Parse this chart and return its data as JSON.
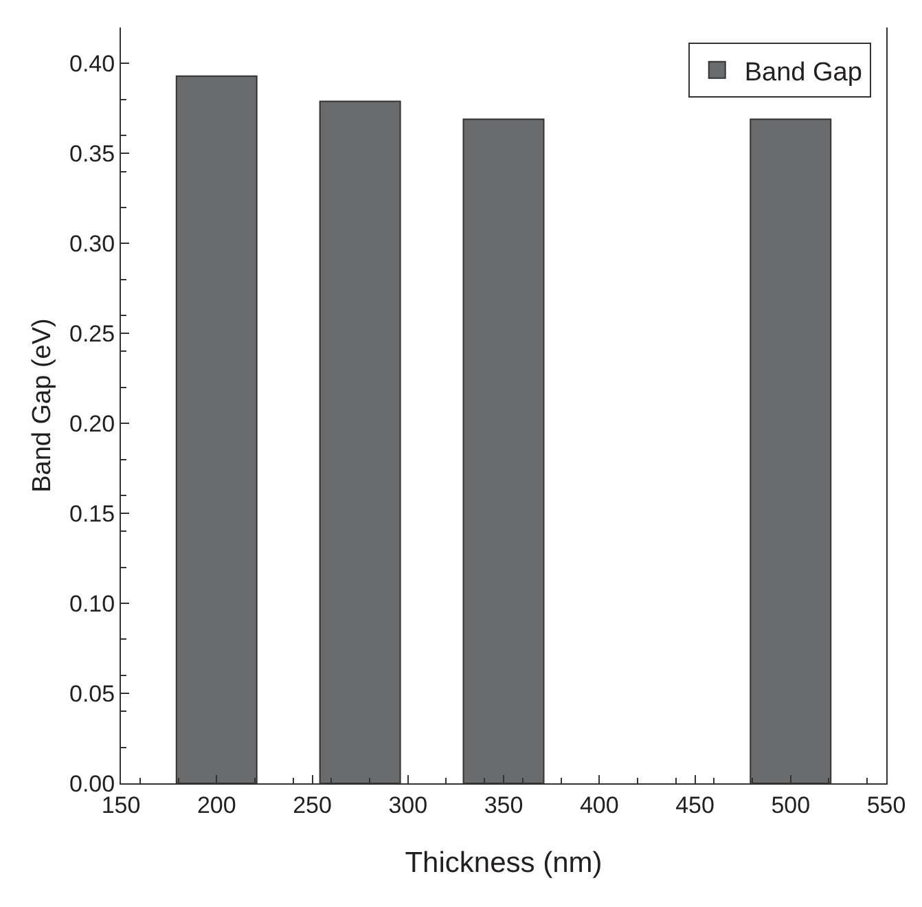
{
  "chart_data": {
    "type": "bar",
    "xlabel": "Thickness (nm)",
    "ylabel": "Band Gap (eV)",
    "x": [
      200,
      275,
      350,
      500
    ],
    "series": [
      {
        "name": "Band Gap",
        "color": "#6a6b6d",
        "values": [
          0.393,
          0.379,
          0.369,
          0.369
        ]
      }
    ],
    "xlim": [
      150,
      550
    ],
    "xticks": [
      150,
      200,
      250,
      300,
      350,
      400,
      450,
      500,
      550
    ],
    "ylim": [
      0,
      0.42
    ],
    "yticks": [
      {
        "value": 0,
        "label": "0.00"
      },
      {
        "value": 0.05,
        "label": "0.05"
      },
      {
        "value": 0.1,
        "label": "0.10"
      },
      {
        "value": 0.15,
        "label": "0.15"
      },
      {
        "value": 0.2,
        "label": "0.20"
      },
      {
        "value": 0.25,
        "label": "0.25"
      },
      {
        "value": 0.3,
        "label": "0.30"
      },
      {
        "value": 0.35,
        "label": "0.35"
      },
      {
        "value": 0.4,
        "label": "0.40"
      }
    ],
    "grid": false,
    "legend": "top right"
  }
}
